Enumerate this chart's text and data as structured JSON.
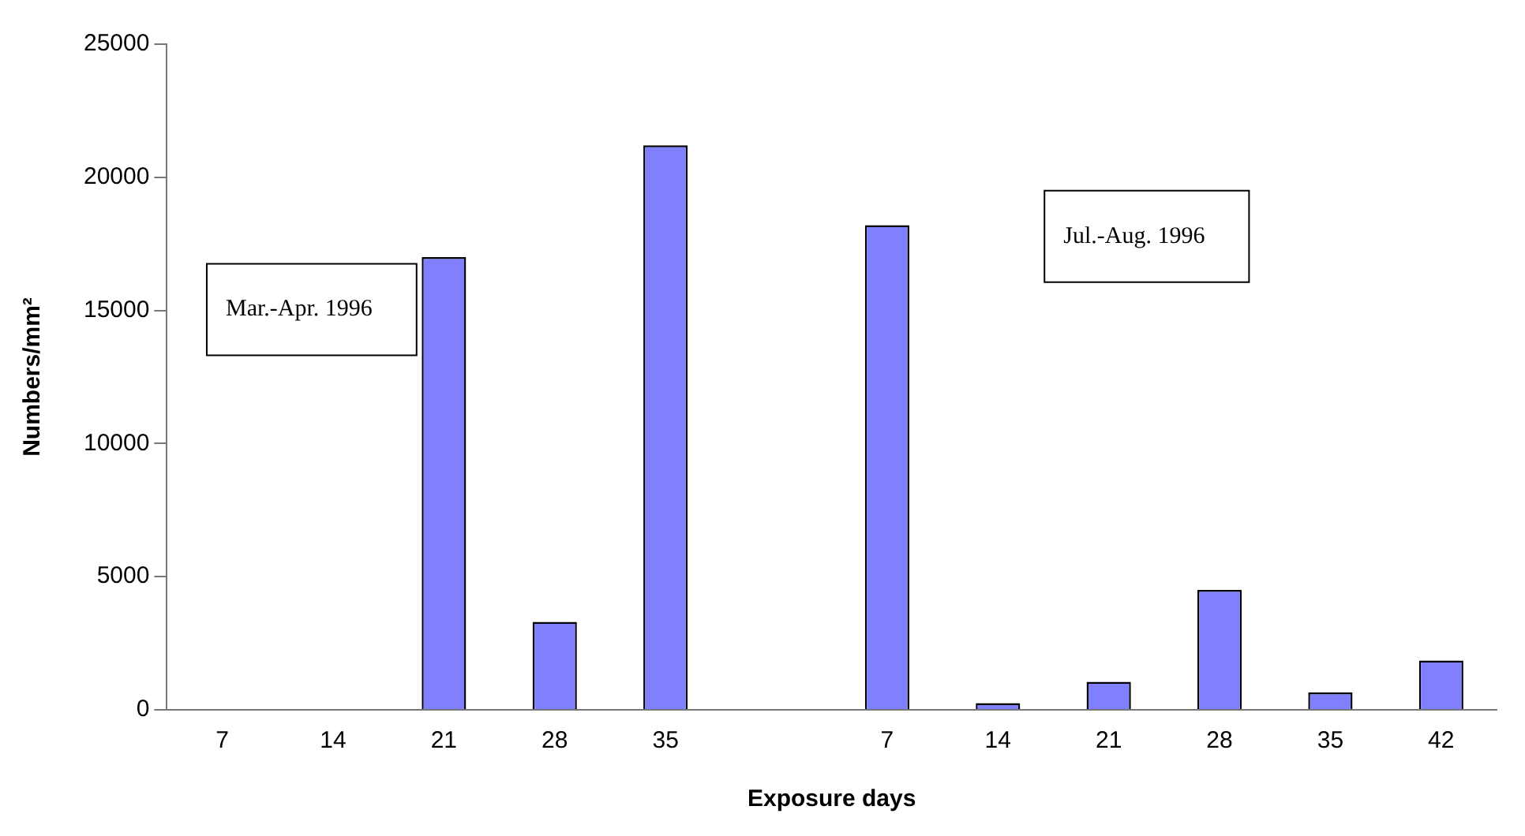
{
  "chart_data": {
    "type": "bar",
    "xlabel": "Exposure days",
    "ylabel": "Numbers/mm²",
    "categories": [
      "7",
      "14",
      "21",
      "28",
      "35",
      null,
      "7",
      "14",
      "21",
      "28",
      "35",
      "42"
    ],
    "values": [
      0,
      null,
      17000,
      3300,
      21200,
      null,
      18200,
      250,
      1050,
      4500,
      650,
      1850
    ],
    "color": "#8080ff",
    "ylim": [
      0,
      25000
    ],
    "yticks": [
      0,
      5000,
      10000,
      15000,
      20000,
      25000
    ],
    "grid": false,
    "legend": false,
    "annotations": [
      "Mar.-Apr. 1996",
      "Jul.-Aug. 1996"
    ]
  }
}
